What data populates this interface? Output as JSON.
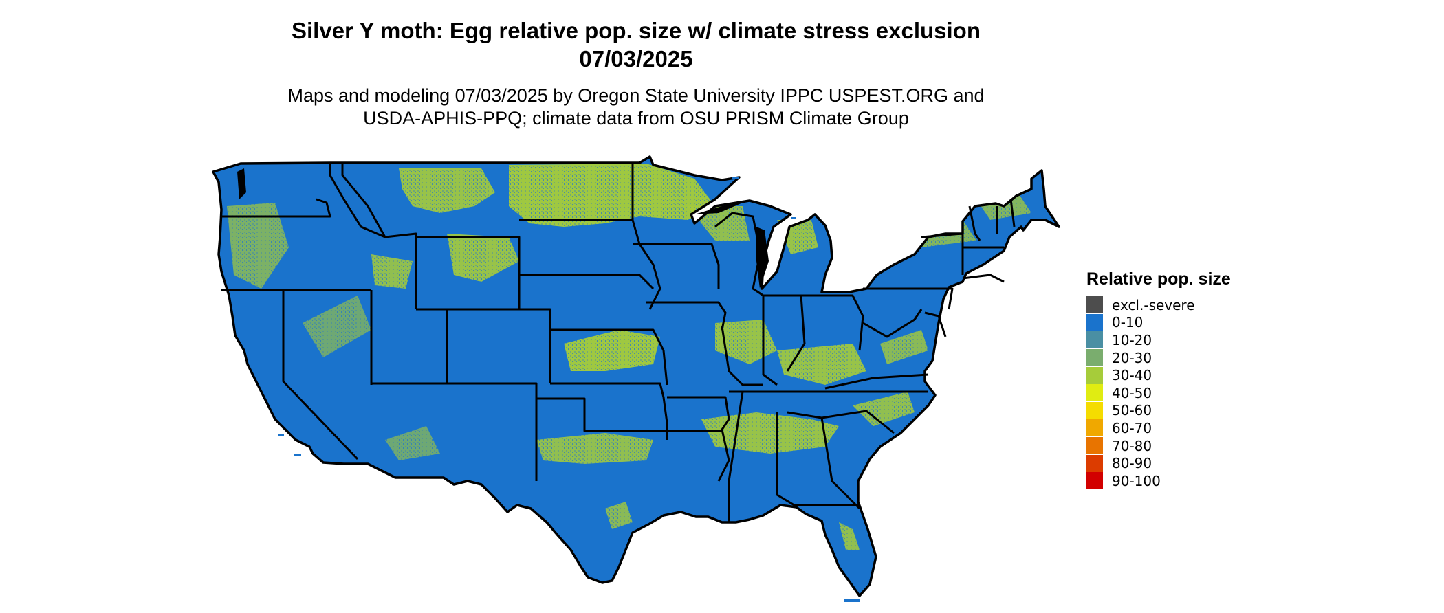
{
  "title_line1": "Silver Y moth: Egg relative pop. size w/ climate stress exclusion",
  "title_line2": "07/03/2025",
  "subtitle_line1": "Maps and modeling 07/03/2025 by Oregon State University IPPC USPEST.ORG and",
  "subtitle_line2": "USDA-APHIS-PPQ; climate data from OSU PRISM Climate Group",
  "legend": {
    "title": "Relative pop. size",
    "items": [
      {
        "label": "excl.-severe",
        "color": "#4d4d4d"
      },
      {
        "label": "0-10",
        "color": "#1a73cc"
      },
      {
        "label": "10-20",
        "color": "#4a8fa3"
      },
      {
        "label": "20-30",
        "color": "#7aad6e"
      },
      {
        "label": "30-40",
        "color": "#a6cc3a"
      },
      {
        "label": "40-50",
        "color": "#e0ec12"
      },
      {
        "label": "50-60",
        "color": "#f5dc00"
      },
      {
        "label": "60-70",
        "color": "#f0a800"
      },
      {
        "label": "70-80",
        "color": "#e87400"
      },
      {
        "label": "80-90",
        "color": "#dc3c00"
      },
      {
        "label": "90-100",
        "color": "#d20000"
      }
    ]
  },
  "map": {
    "region": "contiguous United States",
    "base_color": "#1a73cc",
    "highlight_color": "#a6cc3a",
    "border_color": "#000000"
  }
}
